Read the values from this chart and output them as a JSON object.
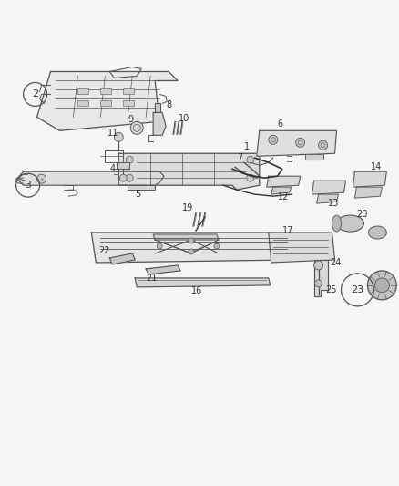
{
  "background_color": "#f5f5f5",
  "line_color": "#555555",
  "text_color": "#333333",
  "fig_width": 4.38,
  "fig_height": 5.33,
  "dpi": 100
}
